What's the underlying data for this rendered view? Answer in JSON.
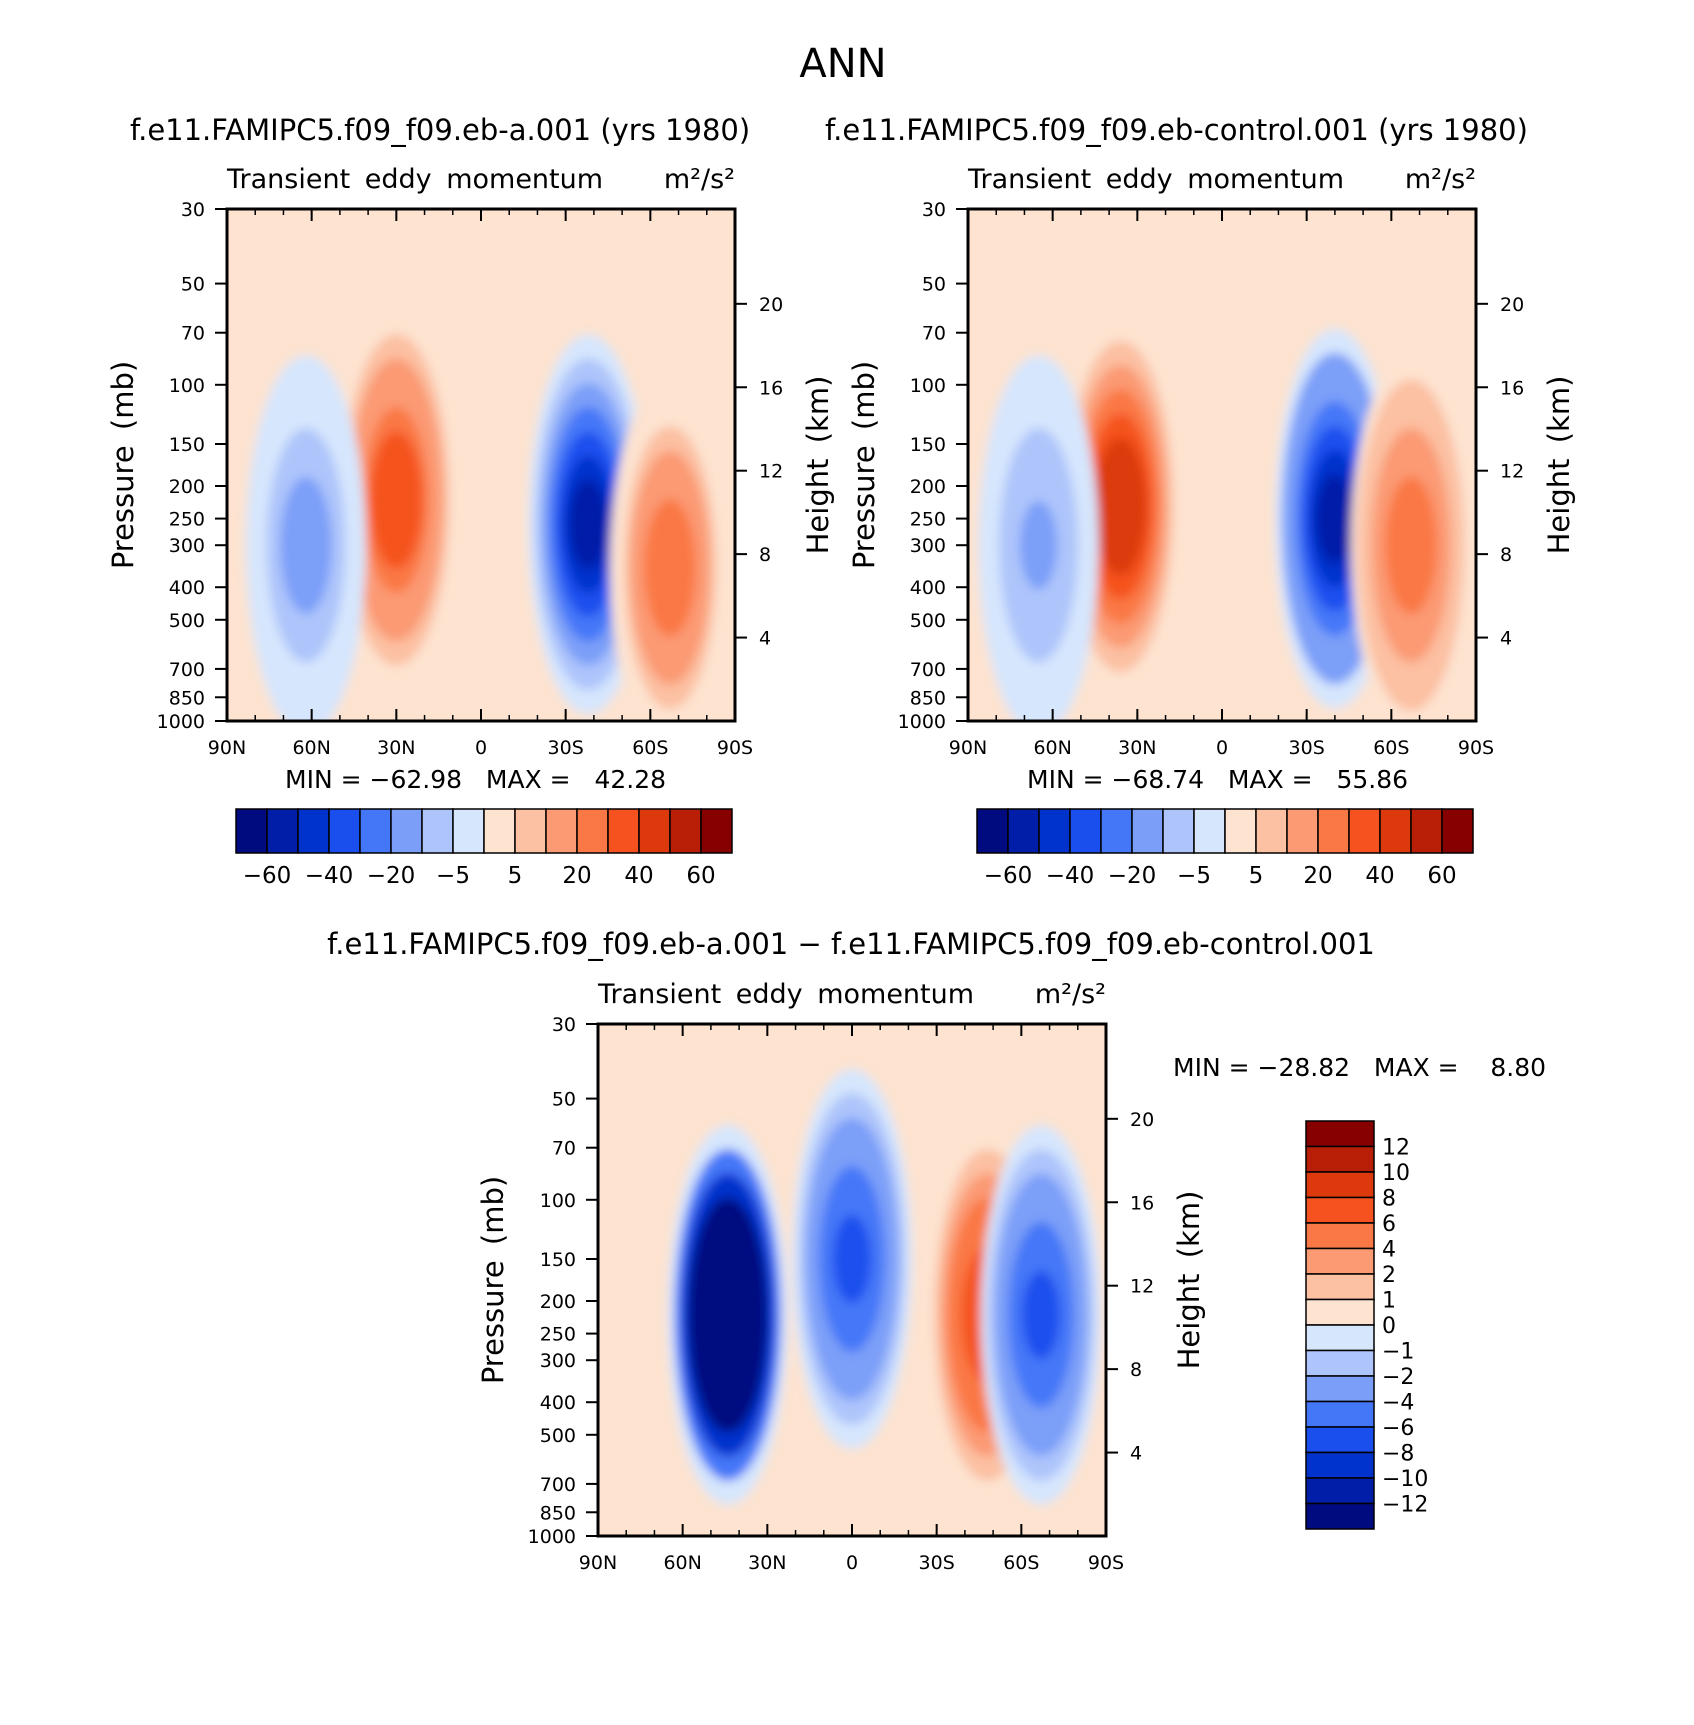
{
  "figure": {
    "title": "ANN",
    "label_min": "MIN",
    "label_max": "MAX",
    "equals": "="
  },
  "colors": {
    "blues": [
      "#000b80",
      "#001ea8",
      "#0033cc",
      "#1a4fee",
      "#4477f8",
      "#7b9ff8",
      "#aec5fb",
      "#d6e6fd"
    ],
    "reds": [
      "#fde3d0",
      "#fcc0a2",
      "#fb9a73",
      "#fa7845",
      "#f5521f",
      "#dc3a0c",
      "#b81f06",
      "#870000"
    ]
  },
  "chart_data": [
    {
      "type": "heatmap",
      "title": "f.e11.FAMIPC5.f09_f09.eb-a.001 (yrs 1980)",
      "subtitle": "Transient eddy momentum",
      "units": "m²/s²",
      "xlabel": "",
      "ylabel": "Pressure (mb)",
      "ylabel_right": "Height (km)",
      "x_ticks": [
        "90N",
        "60N",
        "30N",
        "0",
        "30S",
        "60S",
        "90S"
      ],
      "y_ticks": [
        30,
        50,
        70,
        100,
        150,
        200,
        250,
        300,
        400,
        500,
        700,
        850,
        1000
      ],
      "y_right_ticks": [
        4,
        8,
        12,
        16,
        20
      ],
      "ylim": [
        1000,
        30
      ],
      "min": "−62.98",
      "max": "42.28",
      "contour_levels": [
        -60,
        -50,
        -40,
        -30,
        -20,
        -10,
        -5,
        0,
        5,
        10,
        20,
        30,
        40,
        50,
        60
      ],
      "colorbar_labels": [
        "−60",
        "−40",
        "−20",
        "−5",
        "5",
        "20",
        "40",
        "60"
      ],
      "features": [
        {
          "name": "NH subtropical max",
          "lat": 30,
          "p": 220,
          "value": 42.28
        },
        {
          "name": "SH midlatitude min",
          "lat": -38,
          "p": 260,
          "value": -62.98
        },
        {
          "name": "SH high-latitude max",
          "lat": -67,
          "p": 350,
          "value": 28
        },
        {
          "name": "NH high-latitude min",
          "lat": 62,
          "p": 300,
          "value": -14
        }
      ]
    },
    {
      "type": "heatmap",
      "title": "f.e11.FAMIPC5.f09_f09.eb-control.001 (yrs 1980)",
      "subtitle": "Transient eddy momentum",
      "units": "m²/s²",
      "xlabel": "",
      "ylabel": "Pressure (mb)",
      "ylabel_right": "Height (km)",
      "x_ticks": [
        "90N",
        "60N",
        "30N",
        "0",
        "30S",
        "60S",
        "90S"
      ],
      "y_ticks": [
        30,
        50,
        70,
        100,
        150,
        200,
        250,
        300,
        400,
        500,
        700,
        850,
        1000
      ],
      "y_right_ticks": [
        4,
        8,
        12,
        16,
        20
      ],
      "ylim": [
        1000,
        30
      ],
      "min": "−68.74",
      "max": "55.86",
      "contour_levels": [
        -60,
        -50,
        -40,
        -30,
        -20,
        -10,
        -5,
        0,
        5,
        10,
        20,
        30,
        40,
        50,
        60
      ],
      "colorbar_labels": [
        "−60",
        "−40",
        "−20",
        "−5",
        "5",
        "20",
        "40",
        "60"
      ],
      "features": [
        {
          "name": "NH subtropical max",
          "lat": 36,
          "p": 230,
          "value": 55.86
        },
        {
          "name": "SH midlatitude min",
          "lat": -40,
          "p": 250,
          "value": -68.74
        },
        {
          "name": "SH high-latitude max",
          "lat": -67,
          "p": 300,
          "value": 32
        },
        {
          "name": "NH high-latitude min",
          "lat": 65,
          "p": 300,
          "value": -12
        }
      ]
    },
    {
      "type": "heatmap",
      "title": "f.e11.FAMIPC5.f09_f09.eb-a.001 − f.e11.FAMIPC5.f09_f09.eb-control.001",
      "subtitle": "Transient eddy momentum",
      "units": "m²/s²",
      "xlabel": "",
      "ylabel": "Pressure (mb)",
      "ylabel_right": "Height (km)",
      "x_ticks": [
        "90N",
        "60N",
        "30N",
        "0",
        "30S",
        "60S",
        "90S"
      ],
      "y_ticks": [
        30,
        50,
        70,
        100,
        150,
        200,
        250,
        300,
        400,
        500,
        700,
        850,
        1000
      ],
      "y_right_ticks": [
        4,
        8,
        12,
        16,
        20
      ],
      "ylim": [
        1000,
        30
      ],
      "min": "−28.82",
      "max": "8.80",
      "contour_levels": [
        -12,
        -10,
        -8,
        -6,
        -4,
        -2,
        -1,
        0,
        1,
        2,
        4,
        6,
        8,
        10,
        12
      ],
      "colorbar_labels": [
        "12",
        "10",
        "8",
        "6",
        "4",
        "2",
        "1",
        "0",
        "−1",
        "−2",
        "−4",
        "−6",
        "−8",
        "−10",
        "−12"
      ],
      "features": [
        {
          "name": "NH midlatitude min",
          "lat": 44,
          "p": 220,
          "value": -28.82
        },
        {
          "name": "SH midlatitude max",
          "lat": -48,
          "p": 220,
          "value": 8.8
        },
        {
          "name": "equatorial upper min",
          "lat": 0,
          "p": 150,
          "value": -8
        },
        {
          "name": "SH high-latitude min",
          "lat": -67,
          "p": 220,
          "value": -7
        }
      ]
    }
  ]
}
